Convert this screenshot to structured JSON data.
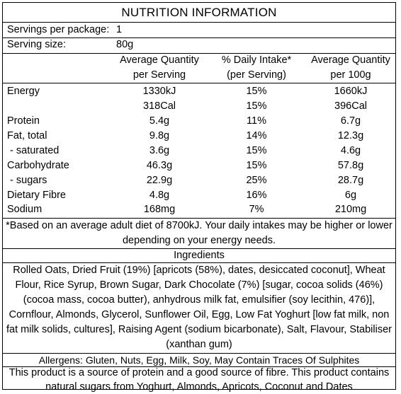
{
  "title": "NUTRITION INFORMATION",
  "servings": {
    "label": "Servings per package:",
    "value": "1"
  },
  "serving_size": {
    "label": "Serving size:",
    "value": "80g"
  },
  "headers": {
    "col1": [
      "Average Quantity",
      "per Serving"
    ],
    "col2": [
      "% Daily Intake*",
      "(per Serving)"
    ],
    "col3": [
      "Average Quantity",
      "per 100g"
    ]
  },
  "rows": [
    {
      "label": "Energy",
      "per_serving": "1330kJ",
      "daily": "15%",
      "per_100g": "1660kJ"
    },
    {
      "label": "",
      "per_serving": "318Cal",
      "daily": "15%",
      "per_100g": "396Cal"
    },
    {
      "label": "Protein",
      "per_serving": "5.4g",
      "daily": "11%",
      "per_100g": "6.7g"
    },
    {
      "label": "Fat, total",
      "per_serving": "9.8g",
      "daily": "14%",
      "per_100g": "12.3g"
    },
    {
      "label": " - saturated",
      "per_serving": "3.6g",
      "daily": "15%",
      "per_100g": "4.6g"
    },
    {
      "label": "Carbohydrate",
      "per_serving": "46.3g",
      "daily": "15%",
      "per_100g": "57.8g"
    },
    {
      "label": " - sugars",
      "per_serving": "22.9g",
      "daily": "25%",
      "per_100g": "28.7g"
    },
    {
      "label": "Dietary Fibre",
      "per_serving": "4.8g",
      "daily": "16%",
      "per_100g": "6g"
    },
    {
      "label": "Sodium",
      "per_serving": "168mg",
      "daily": "7%",
      "per_100g": "210mg"
    }
  ],
  "footnote": [
    "*Based on an average adult diet of 8700kJ. Your daily intakes may be higher or lower",
    "depending on your energy needs."
  ],
  "ingredients_heading": "Ingredients",
  "ingredients": [
    "Rolled Oats, Dried Fruit (19%) [apricots (58%), dates, desiccated coconut], Wheat",
    "Flour, Rice Syrup, Brown Sugar, Dark Chocolate (7%) [sugar, cocoa solids (46%)",
    "(cocoa mass, cocoa butter), anhydrous milk fat, emulsifier (soy lecithin, 476)],",
    "Cornflour, Almonds, Glycerol, Sunflower Oil, Egg, Low Fat Yoghurt [low fat milk, non",
    "fat milk solids, cultures], Raising Agent (sodium bicarbonate), Salt, Flavour, Stabiliser",
    "(xanthan gum)"
  ],
  "allergens": "Allergens: Gluten, Nuts, Egg, Milk, Soy, May Contain Traces Of Sulphites",
  "claim": [
    "This product is a source of protein and a good source of fibre. This product contains",
    "natural sugars from Yoghurt, Almonds, Apricots, Coconut and Dates"
  ]
}
